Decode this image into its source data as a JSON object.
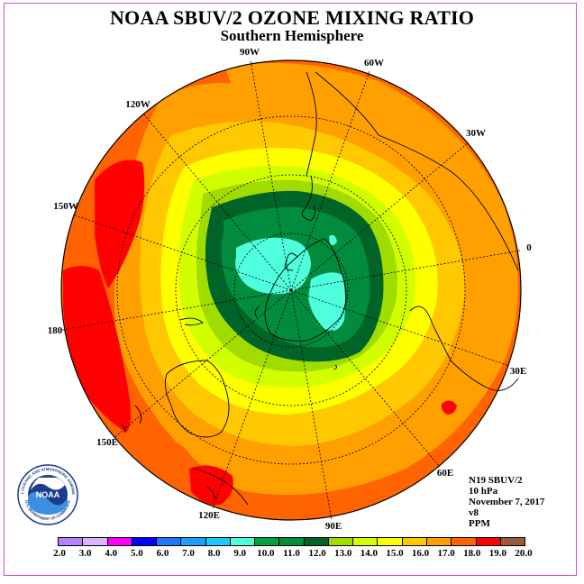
{
  "title": "NOAA SBUV/2 OZONE MIXING RATIO",
  "subtitle": "Southern Hemisphere",
  "longitude_labels": [
    "90W",
    "60W",
    "30W",
    "0",
    "30E",
    "60E",
    "90E",
    "120E",
    "150E",
    "180",
    "150W",
    "120W"
  ],
  "info": {
    "instrument": "N19 SBUV/2",
    "level": "10 hPa",
    "date": "November 7, 2017",
    "version": "v8",
    "units": "PPM"
  },
  "logo": {
    "text": "NOAA",
    "ring_text": "NATIONAL OCEANIC AND ATMOSPHERIC ADMINISTRATION",
    "bottom_text": "U.S. DEPARTMENT OF COMMERCE"
  },
  "colorbar": {
    "ticks": [
      "2.0",
      "3.0",
      "4.0",
      "5.0",
      "6.0",
      "7.0",
      "8.0",
      "9.0",
      "10.0",
      "11.0",
      "12.0",
      "13.0",
      "14.0",
      "15.0",
      "16.0",
      "17.0",
      "18.0",
      "19.0",
      "20.0"
    ],
    "colors": [
      "#b482ff",
      "#dcb4ff",
      "#ff00ff",
      "#0000ff",
      "#1e78ff",
      "#1ea0ff",
      "#1ec8ff",
      "#50ffdc",
      "#00a040",
      "#008c3c",
      "#006428",
      "#a0dc00",
      "#d2ff00",
      "#ffff00",
      "#ffc800",
      "#ffa000",
      "#ff6400",
      "#ff0000",
      "#9b5a3c"
    ]
  },
  "chart_data": {
    "type": "heatmap",
    "projection": "south-polar-stereographic",
    "title": "NOAA SBUV/2 OZONE MIXING RATIO",
    "subtitle": "Southern Hemisphere",
    "units": "PPM",
    "levels": [
      2.0,
      3.0,
      4.0,
      5.0,
      6.0,
      7.0,
      8.0,
      9.0,
      10.0,
      11.0,
      12.0,
      13.0,
      14.0,
      15.0,
      16.0,
      17.0,
      18.0,
      19.0,
      20.0
    ],
    "field_bands_outer_to_inner": [
      "17.0-18.0",
      "16.0-17.0",
      "15.0-16.0",
      "14.0-15.0",
      "13.0-14.0",
      "12.0-13.0",
      "11.0-12.0",
      "10.0-11.0",
      "9.0-10.0"
    ],
    "maximum_regions": "18.0-19.0 near 180 to 150W, near 120E and near 30E-60E"
  }
}
